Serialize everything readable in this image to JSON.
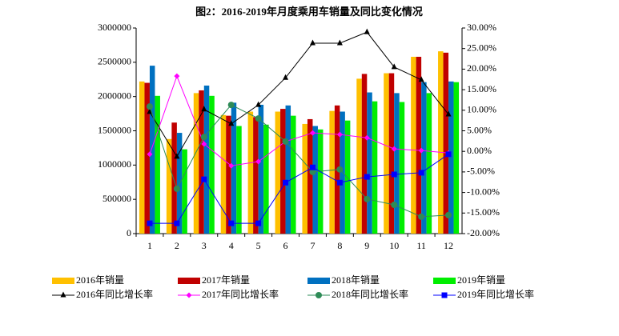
{
  "chart_data": {
    "type": "bar",
    "title": "图2：2016-2019年月度乘用车销量及同比变化情况",
    "categories": [
      "1",
      "2",
      "3",
      "4",
      "5",
      "6",
      "7",
      "8",
      "9",
      "10",
      "11",
      "12"
    ],
    "ylim": [
      0,
      3000000
    ],
    "yticks": [
      0,
      500000,
      1000000,
      1500000,
      2000000,
      2500000,
      3000000
    ],
    "y2lim": [
      -20,
      30
    ],
    "y2ticks": [
      {
        "value": -20,
        "label": "-20.00%"
      },
      {
        "value": -15,
        "label": "-15.00%"
      },
      {
        "value": -10,
        "label": "-10.00%"
      },
      {
        "value": -5,
        "label": "-5.00%"
      },
      {
        "value": 0,
        "label": "0.00%"
      },
      {
        "value": 5,
        "label": "5.00%"
      },
      {
        "value": 10,
        "label": "10.00%"
      },
      {
        "value": 15,
        "label": "15.00%"
      },
      {
        "value": 20,
        "label": "20.00%"
      },
      {
        "value": 25,
        "label": "25.00%"
      },
      {
        "value": 30,
        "label": "30.00%"
      }
    ],
    "grid": false,
    "series": [
      {
        "name": "2016年销量",
        "type": "bar",
        "color": "#ffc000",
        "values": [
          2220000,
          1380000,
          2050000,
          1730000,
          1780000,
          1780000,
          1600000,
          1790000,
          2260000,
          2340000,
          2580000,
          2660000
        ]
      },
      {
        "name": "2017年销量",
        "type": "bar",
        "color": "#c00000",
        "values": [
          2200000,
          1620000,
          2090000,
          1720000,
          1700000,
          1820000,
          1670000,
          1870000,
          2330000,
          2340000,
          2580000,
          2640000
        ]
      },
      {
        "name": "2018年销量",
        "type": "bar",
        "color": "#0070c0",
        "values": [
          2450000,
          1470000,
          2160000,
          1910000,
          1880000,
          1870000,
          1570000,
          1780000,
          2060000,
          2050000,
          2210000,
          2220000
        ]
      },
      {
        "name": "2019年销量",
        "type": "bar",
        "color": "#00ee00",
        "values": [
          2010000,
          1230000,
          2010000,
          1570000,
          1590000,
          1720000,
          1520000,
          1650000,
          1930000,
          1920000,
          2050000,
          2210000
        ]
      },
      {
        "name": "2016年同比增长率",
        "type": "line",
        "axis": "y2",
        "color": "#000000",
        "marker": "triangle",
        "values": [
          9.6,
          -1.3,
          10.2,
          6.7,
          11.3,
          17.9,
          26.3,
          26.3,
          29,
          20.5,
          17.4,
          9
        ]
      },
      {
        "name": "2017年同比增长率",
        "type": "line",
        "axis": "y2",
        "color": "#ff00ff",
        "marker": "diamond",
        "values": [
          -0.7,
          18.3,
          1.8,
          -3.5,
          -2.5,
          2.4,
          4.5,
          4.1,
          3.3,
          0.6,
          0.2,
          -0.4
        ]
      },
      {
        "name": "2018年同比增长率",
        "type": "line",
        "axis": "y2",
        "color": "#2e8b57",
        "marker": "circle",
        "values": [
          10.9,
          -9.1,
          3.5,
          11.3,
          8,
          2.4,
          -5,
          -4.4,
          -11.6,
          -13,
          -15.9,
          -15.5
        ]
      },
      {
        "name": "2019年同比增长率",
        "type": "line",
        "axis": "y2",
        "color": "#0000ff",
        "marker": "square",
        "values": [
          -17.5,
          -17.5,
          -6.8,
          -17.5,
          -17.5,
          -7.6,
          -3.9,
          -7.6,
          -6.2,
          -5.6,
          -5.2,
          -0.7
        ]
      }
    ]
  }
}
